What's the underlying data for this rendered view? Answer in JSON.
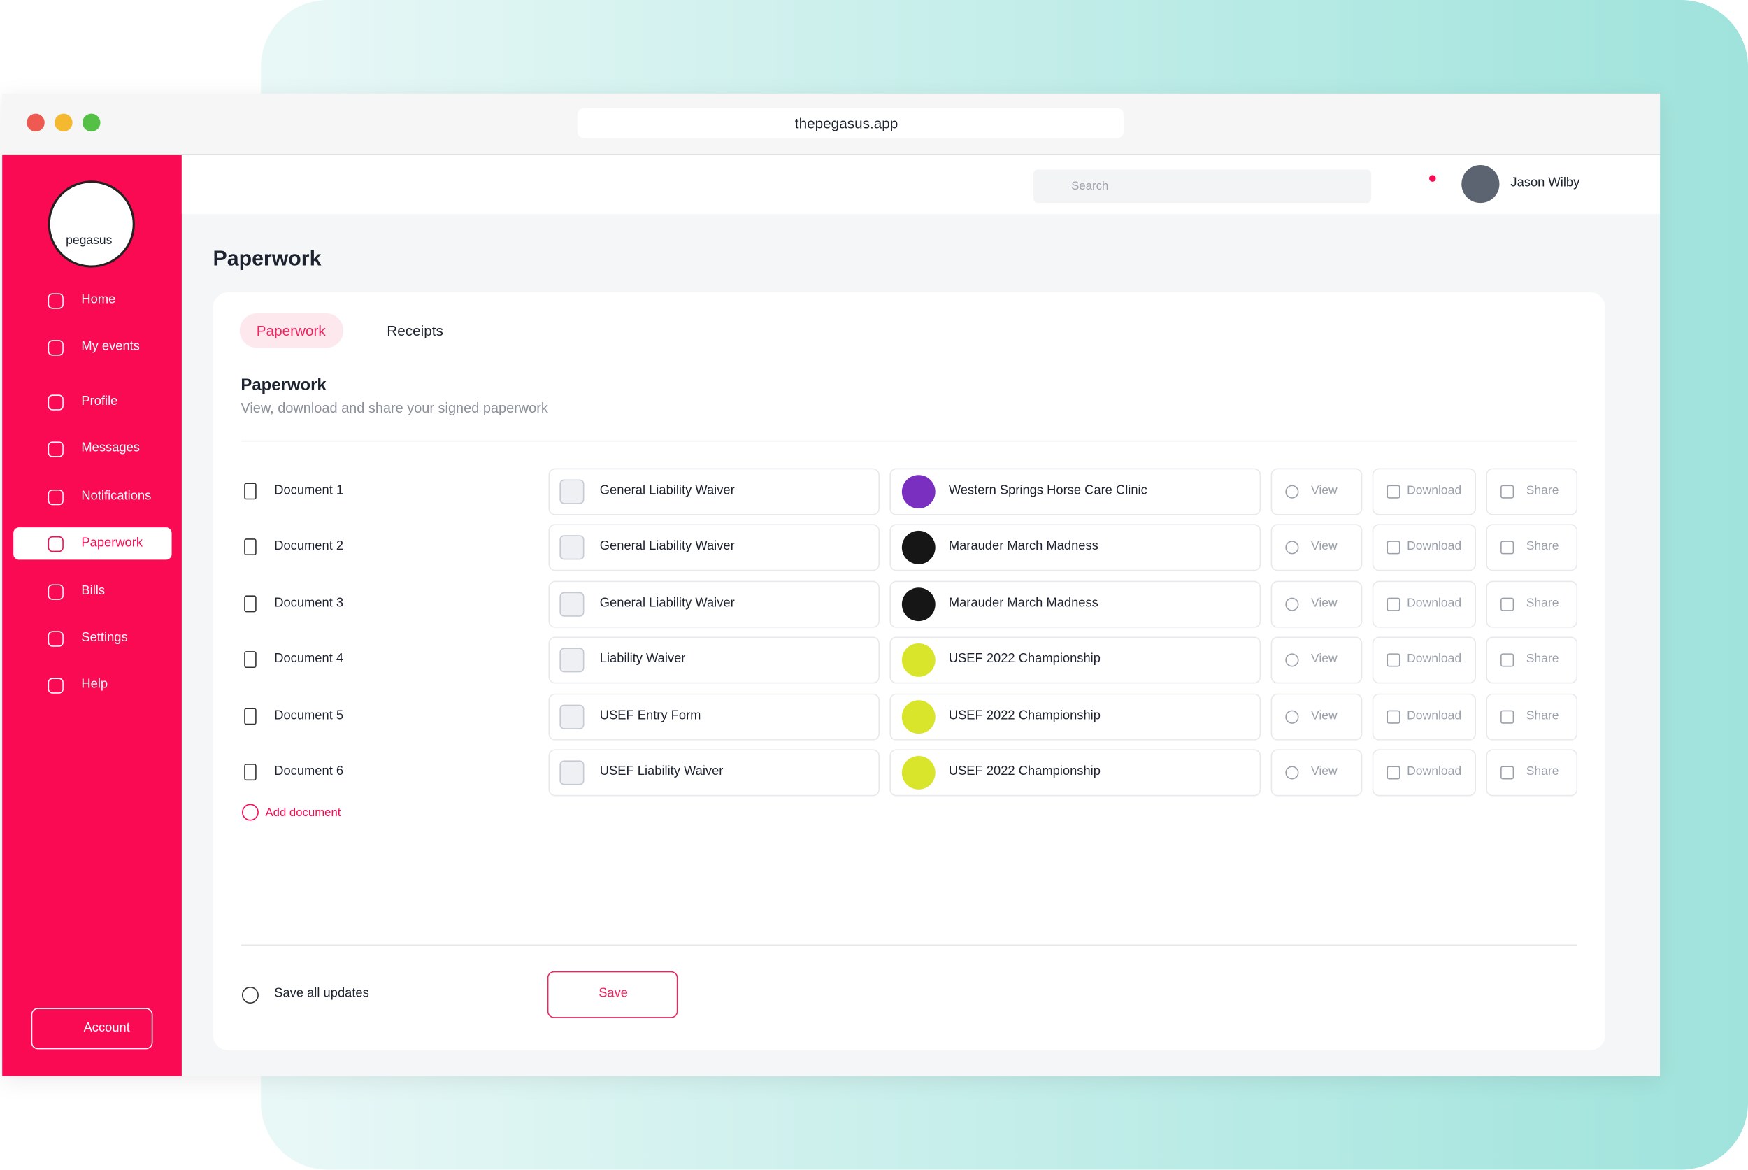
{
  "browser": {
    "url": "thepegasus.app"
  },
  "header": {
    "search_placeholder": "Search",
    "user_name": "Jason Wilby"
  },
  "sidebar": {
    "logo": "pegasus",
    "nav": [
      "Home",
      "My events",
      "Profile",
      "Messages",
      "Notifications",
      "Paperwork",
      "Bills",
      "Settings",
      "Help"
    ],
    "active": "Paperwork",
    "account": "Account"
  },
  "page": {
    "title": "Paperwork",
    "tabs": [
      "Paperwork",
      "Receipts"
    ],
    "section_title": "Paperwork",
    "section_subtitle": "View, download and share your signed paperwork",
    "actions": [
      "View",
      "Download",
      "Share"
    ],
    "documents": [
      {
        "name": "Document 1",
        "form": "General Liability Waiver",
        "event": "Western Springs Horse Care Clinic"
      },
      {
        "name": "Document 2",
        "form": "General Liability Waiver",
        "event": "Marauder March Madness"
      },
      {
        "name": "Document 3",
        "form": "General Liability Waiver",
        "event": "Marauder March Madness"
      },
      {
        "name": "Document 4",
        "form": "Liability Waiver",
        "event": "USEF 2022 Championship"
      },
      {
        "name": "Document 5",
        "form": "USEF Entry Form",
        "event": "USEF 2022 Championship"
      },
      {
        "name": "Document 6",
        "form": "USEF Liability Waiver",
        "event": "USEF 2022 Championship"
      }
    ],
    "add_document": "Add document",
    "save_all": "Save all updates",
    "save_button": "Save"
  }
}
